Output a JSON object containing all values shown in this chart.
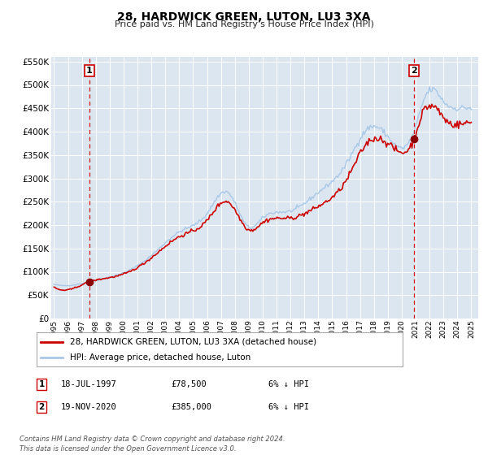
{
  "title": "28, HARDWICK GREEN, LUTON, LU3 3XA",
  "subtitle": "Price paid vs. HM Land Registry's House Price Index (HPI)",
  "background_color": "#dce6f1",
  "plot_bg_color": "#dce6f1",
  "hpi_color": "#a8c8e8",
  "price_color": "#cc0000",
  "marker_color": "#8b0000",
  "vline_color": "#cc0000",
  "ylim": [
    0,
    560000
  ],
  "yticks": [
    0,
    50000,
    100000,
    150000,
    200000,
    250000,
    300000,
    350000,
    400000,
    450000,
    500000,
    550000
  ],
  "legend_label_price": "28, HARDWICK GREEN, LUTON, LU3 3XA (detached house)",
  "legend_label_hpi": "HPI: Average price, detached house, Luton",
  "sale1_date": 1997.54,
  "sale1_price": 78500,
  "sale2_date": 2020.88,
  "sale2_price": 385000,
  "footnote": "Contains HM Land Registry data © Crown copyright and database right 2024.\nThis data is licensed under the Open Government Licence v3.0.",
  "table_row1": [
    "1",
    "18-JUL-1997",
    "£78,500",
    "6% ↓ HPI"
  ],
  "table_row2": [
    "2",
    "19-NOV-2020",
    "£385,000",
    "6% ↓ HPI"
  ]
}
